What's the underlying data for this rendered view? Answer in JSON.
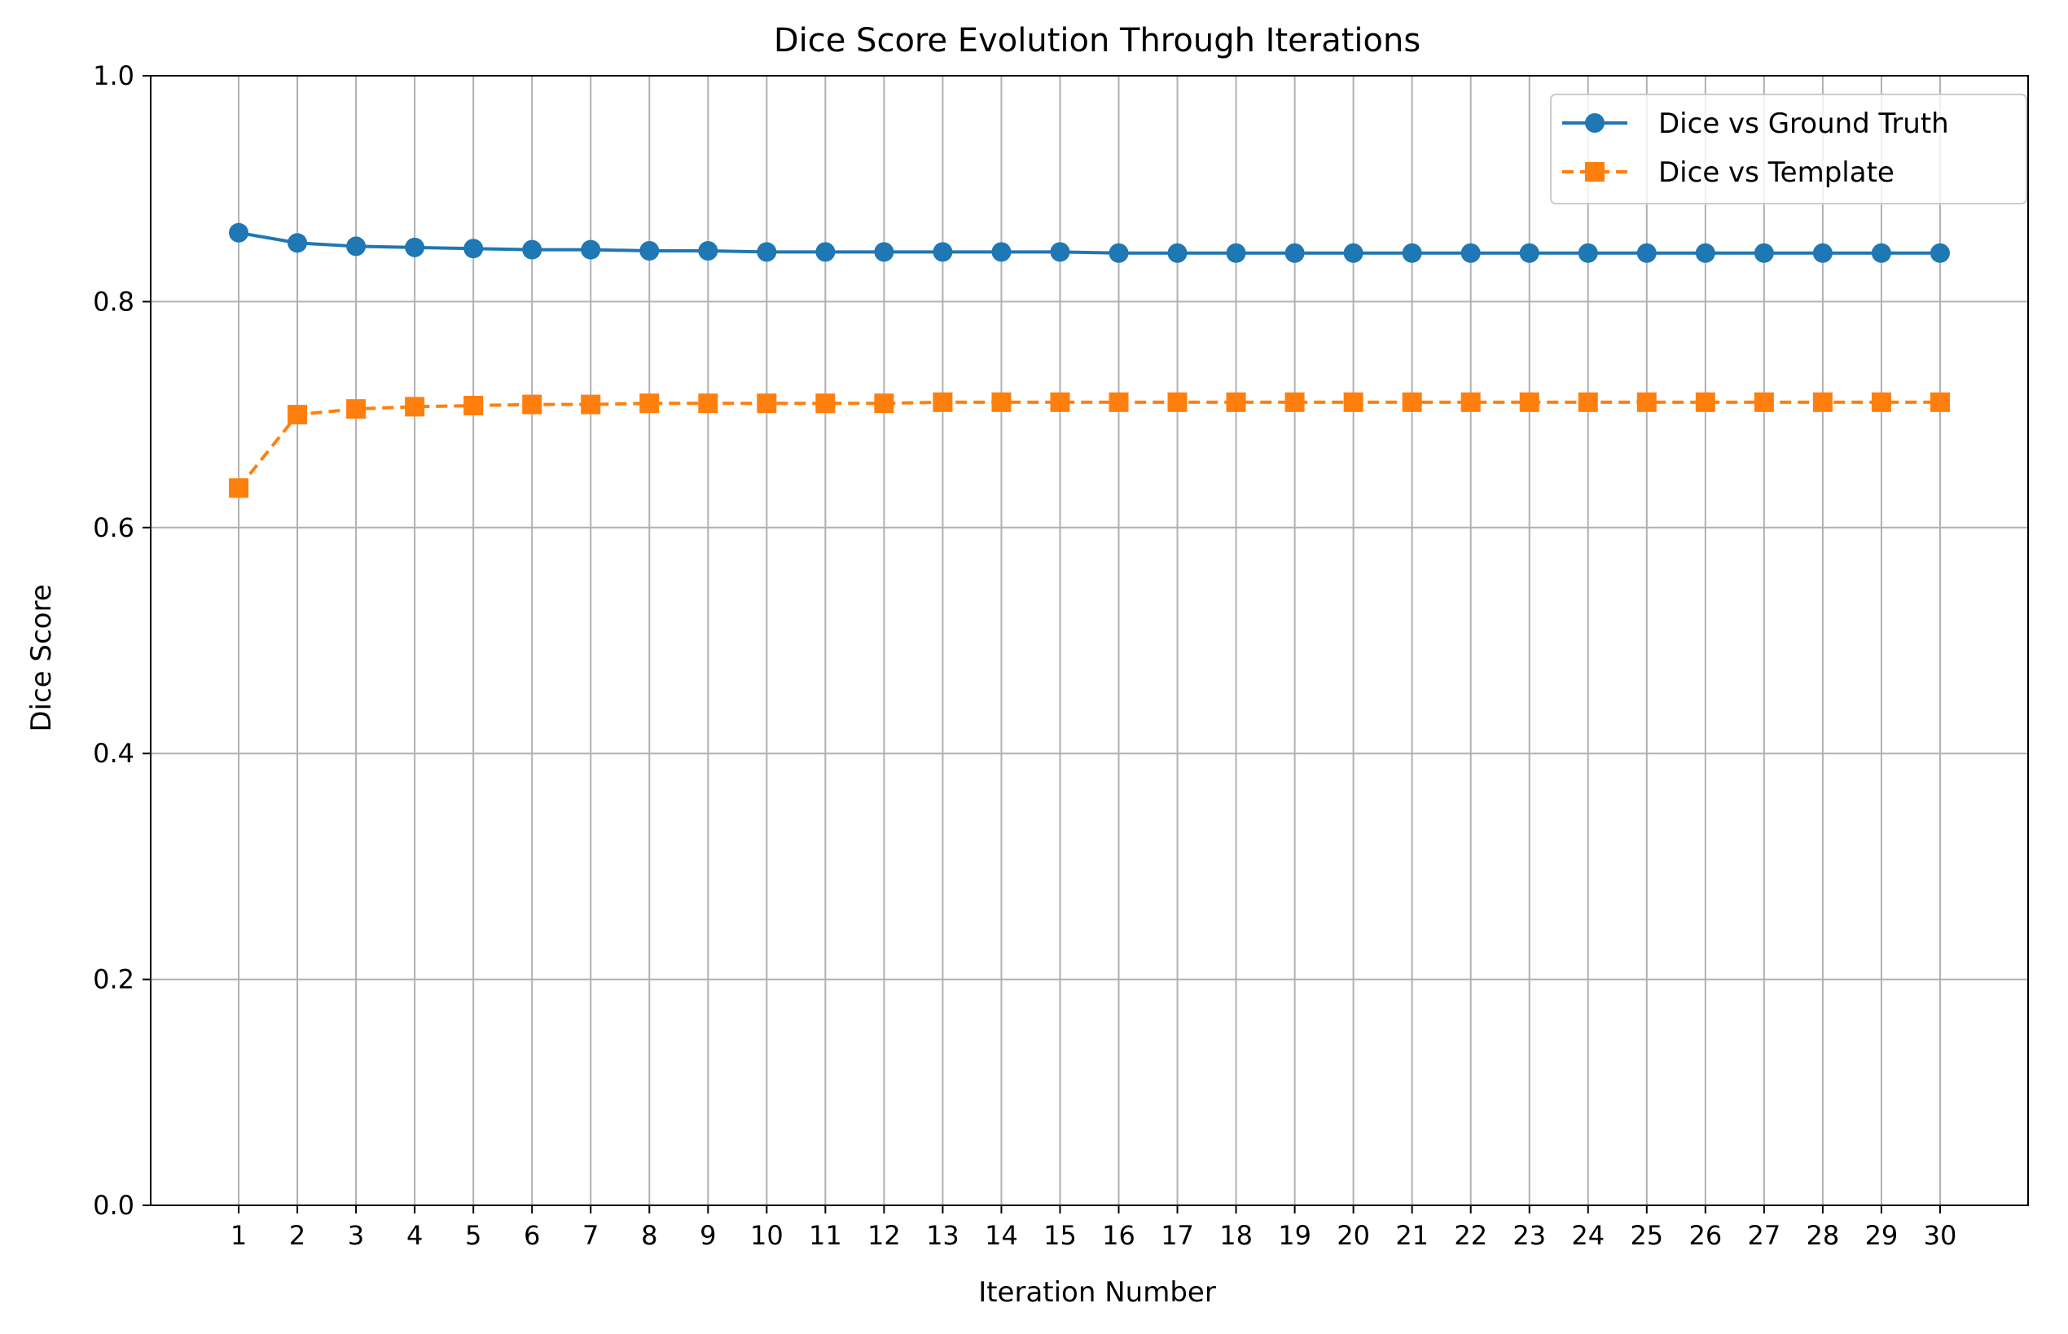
{
  "chart_data": {
    "type": "line",
    "title": "Dice Score Evolution Through Iterations",
    "xlabel": "Iteration Number",
    "ylabel": "Dice Score",
    "x": [
      1,
      2,
      3,
      4,
      5,
      6,
      7,
      8,
      9,
      10,
      11,
      12,
      13,
      14,
      15,
      16,
      17,
      18,
      19,
      20,
      21,
      22,
      23,
      24,
      25,
      26,
      27,
      28,
      29,
      30
    ],
    "xlim": [
      -0.5,
      31.5
    ],
    "ylim": [
      0.0,
      1.0
    ],
    "yticks": [
      0.0,
      0.2,
      0.4,
      0.6,
      0.8,
      1.0
    ],
    "ytick_labels": [
      "0.0",
      "0.2",
      "0.4",
      "0.6",
      "0.8",
      "1.0"
    ],
    "grid": true,
    "legend_position": "top-right",
    "series": [
      {
        "name": "Dice vs Ground Truth",
        "color": "#1f77b4",
        "line_style": "solid",
        "marker": "circle",
        "values": [
          0.861,
          0.852,
          0.849,
          0.848,
          0.847,
          0.846,
          0.846,
          0.845,
          0.845,
          0.844,
          0.844,
          0.844,
          0.844,
          0.844,
          0.844,
          0.843,
          0.843,
          0.843,
          0.843,
          0.843,
          0.843,
          0.843,
          0.843,
          0.843,
          0.843,
          0.843,
          0.843,
          0.843,
          0.843,
          0.843
        ]
      },
      {
        "name": "Dice vs Template",
        "color": "#ff7f0e",
        "line_style": "dashed",
        "marker": "square",
        "values": [
          0.635,
          0.7,
          0.705,
          0.707,
          0.708,
          0.709,
          0.709,
          0.71,
          0.71,
          0.71,
          0.71,
          0.71,
          0.711,
          0.711,
          0.711,
          0.711,
          0.711,
          0.711,
          0.711,
          0.711,
          0.711,
          0.711,
          0.711,
          0.711,
          0.711,
          0.711,
          0.711,
          0.711,
          0.711,
          0.711
        ]
      }
    ]
  }
}
